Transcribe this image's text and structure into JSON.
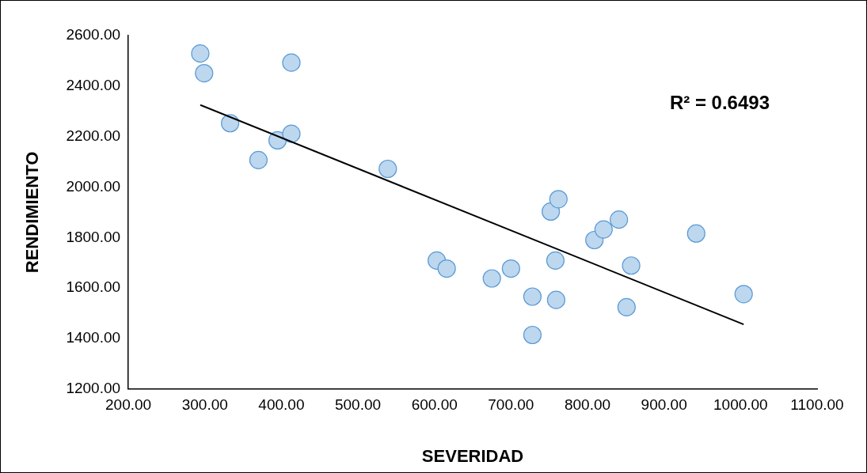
{
  "chart_data": {
    "type": "scatter",
    "xlabel": "SEVERIDAD",
    "ylabel": "RENDIMIENTO",
    "annotations": [
      "R² = 0.6493"
    ],
    "xlim": [
      200,
      1100
    ],
    "xticks": [
      {
        "value": 200,
        "label": "200.00"
      },
      {
        "value": 300,
        "label": "300.00"
      },
      {
        "value": 400,
        "label": "400.00"
      },
      {
        "value": 500,
        "label": "500.00"
      },
      {
        "value": 600,
        "label": "600.00"
      },
      {
        "value": 700,
        "label": "700.00"
      },
      {
        "value": 800,
        "label": "800.00"
      },
      {
        "value": 900,
        "label": "900.00"
      },
      {
        "value": 1000,
        "label": "1000.00"
      },
      {
        "value": 1100,
        "label": "1100.00"
      }
    ],
    "ylim": [
      1200,
      2600
    ],
    "yticks": [
      {
        "value": 1200,
        "label": "1200.00"
      },
      {
        "value": 1400,
        "label": "1400.00"
      },
      {
        "value": 1600,
        "label": "1600.00"
      },
      {
        "value": 1800,
        "label": "1800.00"
      },
      {
        "value": 2000,
        "label": "2000.00"
      },
      {
        "value": 2200,
        "label": "2200.00"
      },
      {
        "value": 2400,
        "label": "2400.00"
      },
      {
        "value": 2600,
        "label": "2600.00"
      }
    ],
    "grid": false,
    "legend": false,
    "marker": "circle",
    "series": [
      {
        "type": "scatter",
        "color": "#bdd7ee",
        "x": [
          294,
          299,
          413,
          333,
          395,
          413,
          370,
          539,
          603,
          616,
          675,
          700,
          728,
          728,
          752,
          762,
          758,
          759,
          809,
          821,
          841,
          857,
          851,
          942,
          1004
        ],
        "values": [
          2529,
          2451,
          2493,
          2253,
          2185,
          2211,
          2107,
          2072,
          1709,
          1677,
          1638,
          1677,
          1566,
          1414,
          1903,
          1952,
          1709,
          1553,
          1790,
          1832,
          1871,
          1689,
          1524,
          1816,
          1576
        ]
      },
      {
        "type": "line",
        "color": "#000000",
        "marker": "none",
        "line_style": "solid",
        "x": [
          294,
          1004
        ],
        "values": [
          2325,
          1456
        ]
      }
    ]
  }
}
